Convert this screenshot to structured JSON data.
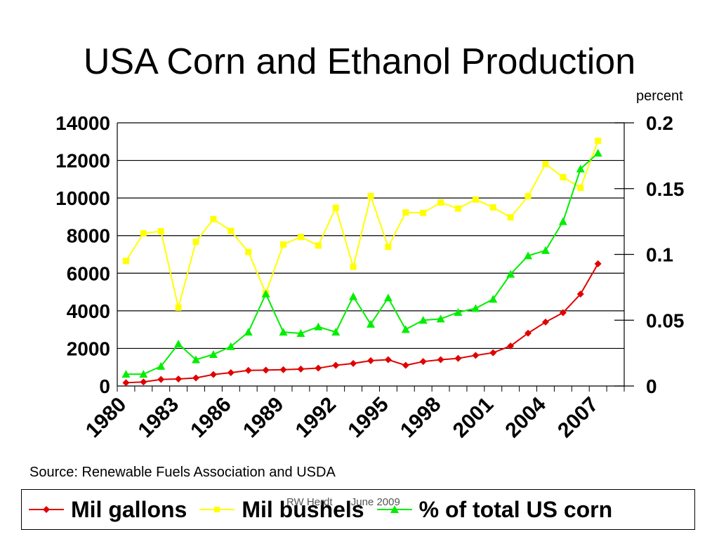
{
  "title": "USA Corn and Ethanol Production",
  "right_axis_unit": "percent",
  "source": "Source: Renewable Fuels Association and USDA",
  "footer": {
    "author": "RW Herdt",
    "date": "June 2009"
  },
  "colors": {
    "mil_gallons": "#e00000",
    "mil_bushels": "#ffff00",
    "pct_corn": "#00ee00"
  },
  "chart_data": {
    "type": "line",
    "title": "USA Corn and Ethanol Production",
    "x": [
      1980,
      1981,
      1982,
      1983,
      1984,
      1985,
      1986,
      1987,
      1988,
      1989,
      1990,
      1991,
      1992,
      1993,
      1994,
      1995,
      1996,
      1997,
      1998,
      1999,
      2000,
      2001,
      2002,
      2003,
      2004,
      2005,
      2006,
      2007,
      2008
    ],
    "x_tick_labels": [
      "1980",
      "1983",
      "1986",
      "1989",
      "1992",
      "1995",
      "1998",
      "2001",
      "2004",
      "2007"
    ],
    "y_left": {
      "ylim": [
        0,
        14000
      ],
      "ticks": [
        "0",
        "2000",
        "4000",
        "6000",
        "8000",
        "10000",
        "12000",
        "14000"
      ]
    },
    "y_right": {
      "label": "percent",
      "ylim": [
        0,
        0.2
      ],
      "ticks": [
        "0",
        "0.05",
        "0.1",
        "0.15",
        "0.2"
      ]
    },
    "grid": true,
    "legend_position": "bottom",
    "series": [
      {
        "name": "Mil gallons",
        "axis": "left",
        "color": "#e00000",
        "marker": "diamond",
        "values": [
          175,
          215,
          350,
          375,
          430,
          610,
          710,
          830,
          845,
          870,
          900,
          950,
          1100,
          1200,
          1350,
          1400,
          1100,
          1300,
          1400,
          1470,
          1630,
          1770,
          2130,
          2810,
          3400,
          3900,
          4890,
          6500,
          null
        ]
      },
      {
        "name": "Mil bushels",
        "axis": "left",
        "color": "#ffff00",
        "marker": "square",
        "values": [
          6650,
          8120,
          8230,
          4170,
          7670,
          8880,
          8250,
          7130,
          4930,
          7530,
          7930,
          7470,
          9480,
          6340,
          10100,
          7400,
          9230,
          9210,
          9760,
          9440,
          9920,
          9500,
          8970,
          10090,
          11810,
          11110,
          10540,
          13040,
          null
        ]
      },
      {
        "name": "% of total US corn",
        "axis": "right",
        "color": "#00ee00",
        "marker": "triangle",
        "values": [
          0.009,
          0.009,
          0.015,
          0.032,
          0.02,
          0.024,
          0.03,
          0.041,
          0.07,
          0.041,
          0.04,
          0.045,
          0.041,
          0.068,
          0.047,
          0.067,
          0.043,
          0.05,
          0.051,
          0.056,
          0.059,
          0.066,
          0.085,
          0.099,
          0.103,
          0.125,
          0.165,
          0.177,
          null
        ]
      }
    ]
  }
}
